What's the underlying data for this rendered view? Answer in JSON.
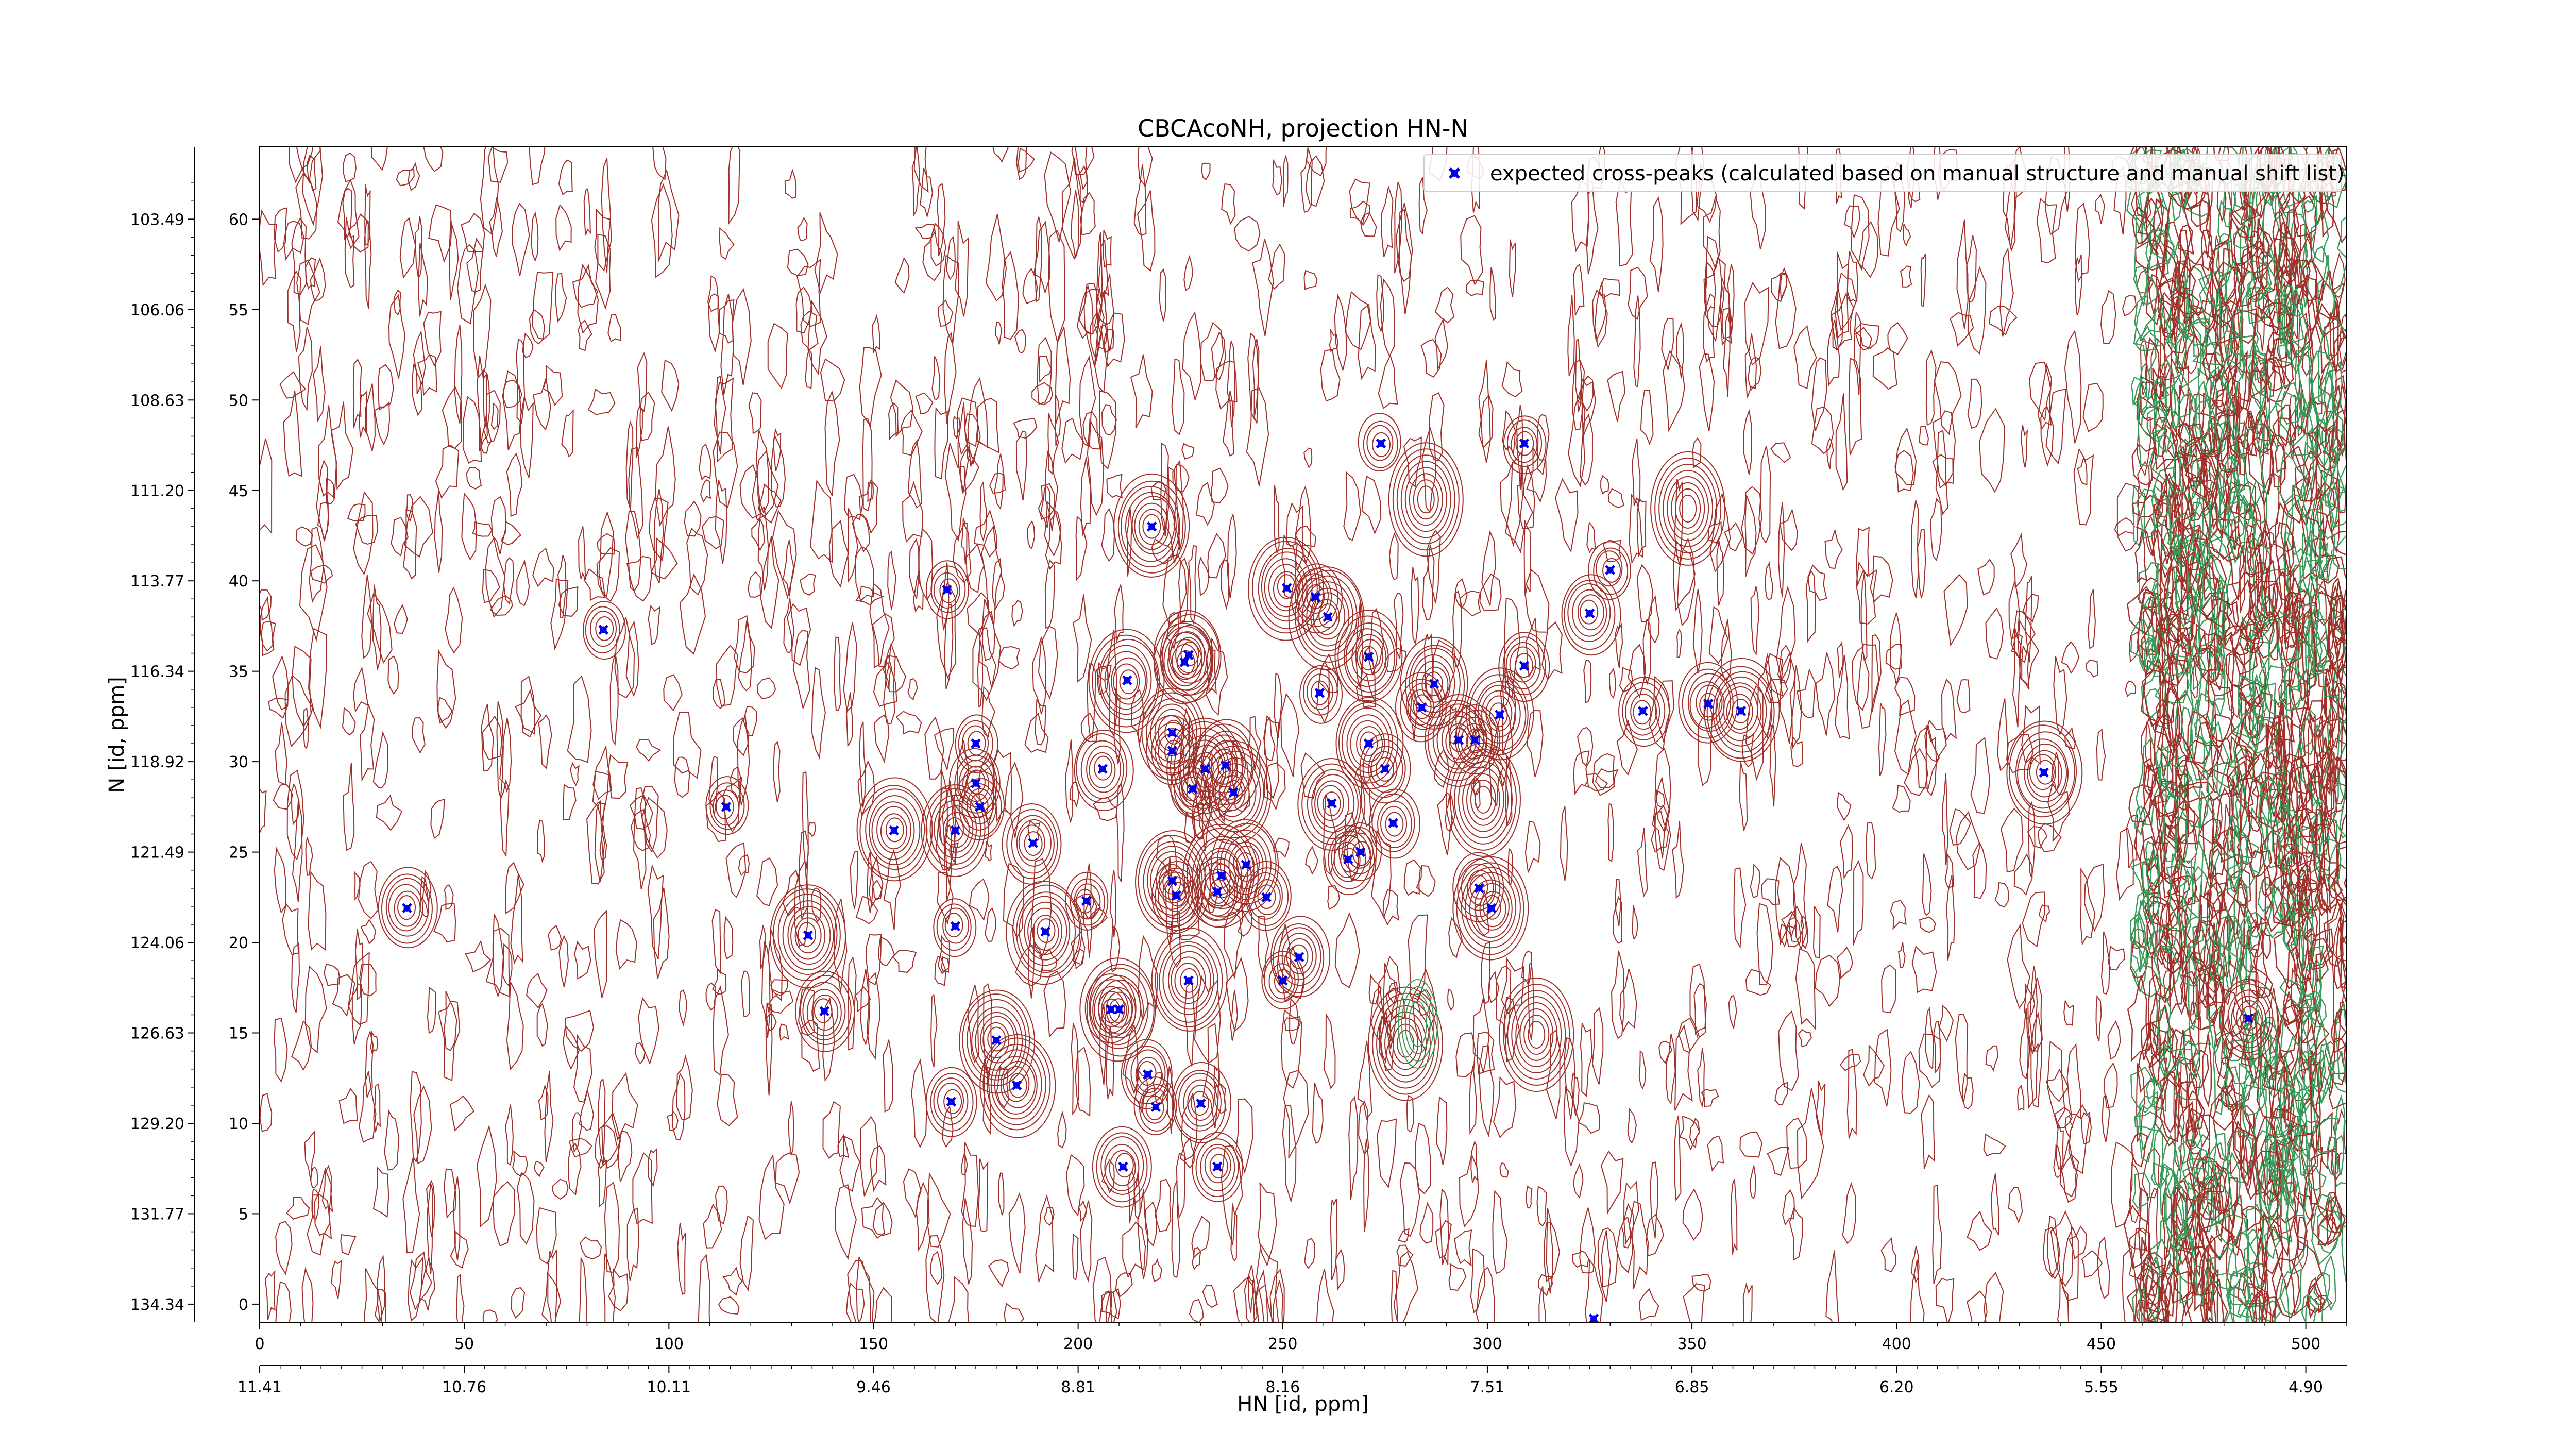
{
  "chart_data": {
    "type": "scatter",
    "title": "CBCAcoNH, projection HN-N",
    "xlabel": "HN [id, ppm]",
    "ylabel": "N [id, ppm]",
    "xlim": [
      0,
      510
    ],
    "ylim": [
      -1,
      64
    ],
    "x_index_ticks": [
      0,
      50,
      100,
      150,
      200,
      250,
      300,
      350,
      400,
      450,
      500
    ],
    "x_ppm_ticks": [
      "11.41",
      "10.76",
      "10.11",
      "9.46",
      "8.81",
      "8.16",
      "7.51",
      "6.85",
      "6.20",
      "5.55",
      "4.90"
    ],
    "y_index_ticks": [
      0,
      5,
      10,
      15,
      20,
      25,
      30,
      35,
      40,
      45,
      50,
      55,
      60
    ],
    "y_ppm_ticks": [
      "134.34",
      "131.77",
      "129.20",
      "126.63",
      "124.06",
      "121.49",
      "118.92",
      "116.34",
      "113.77",
      "111.20",
      "108.63",
      "106.06",
      "103.49"
    ],
    "legend": {
      "location": "top-right",
      "entries": [
        "expected cross-peaks (calculated based on manual structure and manual shift list)"
      ]
    },
    "colors": {
      "expected_peaks": "#0000ee",
      "positive_contours": "#a0302a",
      "negative_contours": "#3a9a5a"
    },
    "series": [
      {
        "name": "expected cross-peaks (calculated based on manual structure and manual shift list)",
        "points": [
          [
            36,
            21.9
          ],
          [
            84,
            37.3
          ],
          [
            114,
            27.5
          ],
          [
            134,
            20.4
          ],
          [
            138,
            16.2
          ],
          [
            155,
            26.2
          ],
          [
            168,
            39.5
          ],
          [
            169,
            11.2
          ],
          [
            170,
            26.2
          ],
          [
            170,
            20.9
          ],
          [
            175,
            31.0
          ],
          [
            175,
            28.8
          ],
          [
            176,
            27.5
          ],
          [
            180,
            14.6
          ],
          [
            185,
            12.1
          ],
          [
            189,
            25.5
          ],
          [
            192,
            20.6
          ],
          [
            202,
            22.3
          ],
          [
            206,
            29.6
          ],
          [
            208,
            16.3
          ],
          [
            210,
            16.3
          ],
          [
            211,
            7.6
          ],
          [
            212,
            34.5
          ],
          [
            217,
            12.7
          ],
          [
            218,
            43.0
          ],
          [
            219,
            10.9
          ],
          [
            223,
            31.6
          ],
          [
            223,
            30.6
          ],
          [
            223,
            23.4
          ],
          [
            224,
            22.6
          ],
          [
            226,
            35.5
          ],
          [
            227,
            35.9
          ],
          [
            227,
            17.9
          ],
          [
            228,
            28.5
          ],
          [
            230,
            11.1
          ],
          [
            231,
            29.6
          ],
          [
            234,
            22.8
          ],
          [
            234,
            7.6
          ],
          [
            235,
            23.7
          ],
          [
            236,
            29.8
          ],
          [
            238,
            28.3
          ],
          [
            241,
            24.3
          ],
          [
            246,
            22.5
          ],
          [
            250,
            17.9
          ],
          [
            251,
            39.6
          ],
          [
            254,
            19.2
          ],
          [
            258,
            39.1
          ],
          [
            259,
            33.8
          ],
          [
            261,
            38.0
          ],
          [
            262,
            27.7
          ],
          [
            266,
            24.6
          ],
          [
            269,
            25.0
          ],
          [
            271,
            31.0
          ],
          [
            271,
            35.8
          ],
          [
            274,
            47.6
          ],
          [
            275,
            29.6
          ],
          [
            277,
            26.6
          ],
          [
            284,
            33.0
          ],
          [
            287,
            34.3
          ],
          [
            293,
            31.2
          ],
          [
            297,
            31.2
          ],
          [
            298,
            23.0
          ],
          [
            301,
            21.9
          ],
          [
            303,
            32.6
          ],
          [
            309,
            35.3
          ],
          [
            309,
            47.6
          ],
          [
            325,
            38.2
          ],
          [
            326,
            -0.8
          ],
          [
            330,
            40.6
          ],
          [
            338,
            32.8
          ],
          [
            354,
            33.2
          ],
          [
            362,
            32.8
          ],
          [
            436,
            29.4
          ],
          [
            486,
            15.8
          ]
        ]
      }
    ]
  }
}
